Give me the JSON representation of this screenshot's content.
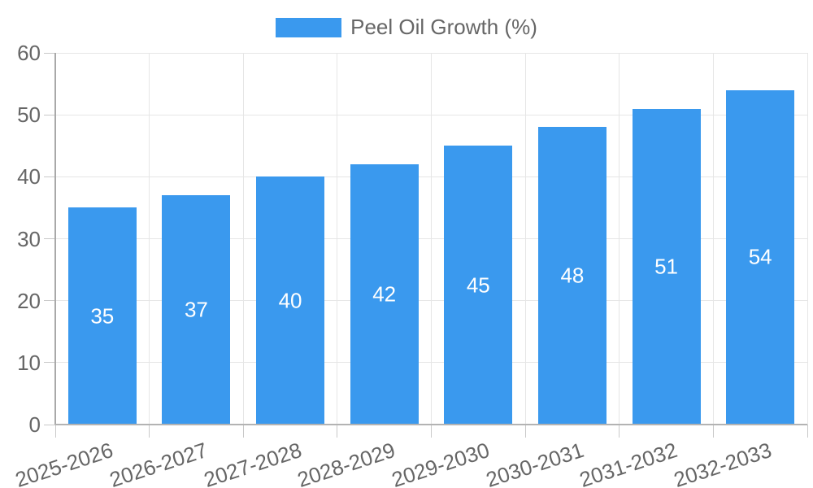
{
  "legend": {
    "label": "Peel Oil Growth (%)"
  },
  "colors": {
    "bar": "#3A99EE",
    "bar_label": "#FFFFFF",
    "grid": "#E6E6E6",
    "axis": "#ADADAD",
    "tick_mark": "#C9C9C9",
    "text": "#666666",
    "background": "#FFFFFF"
  },
  "chart_data": {
    "type": "bar",
    "title": "",
    "categories": [
      "2025-2026",
      "2026-2027",
      "2027-2028",
      "2028-2029",
      "2029-2030",
      "2030-2031",
      "2031-2032",
      "2032-2033"
    ],
    "values": [
      35,
      37,
      40,
      42,
      45,
      48,
      51,
      54
    ],
    "series_name": "Peel Oil Growth (%)",
    "xlabel": "",
    "ylabel": "",
    "ylim": [
      0,
      60
    ],
    "yticks": [
      0,
      10,
      20,
      30,
      40,
      50,
      60
    ],
    "grid": true,
    "legend_position": "top",
    "x_tick_rotation_deg": -18,
    "bar_value_labels_shown": true
  }
}
